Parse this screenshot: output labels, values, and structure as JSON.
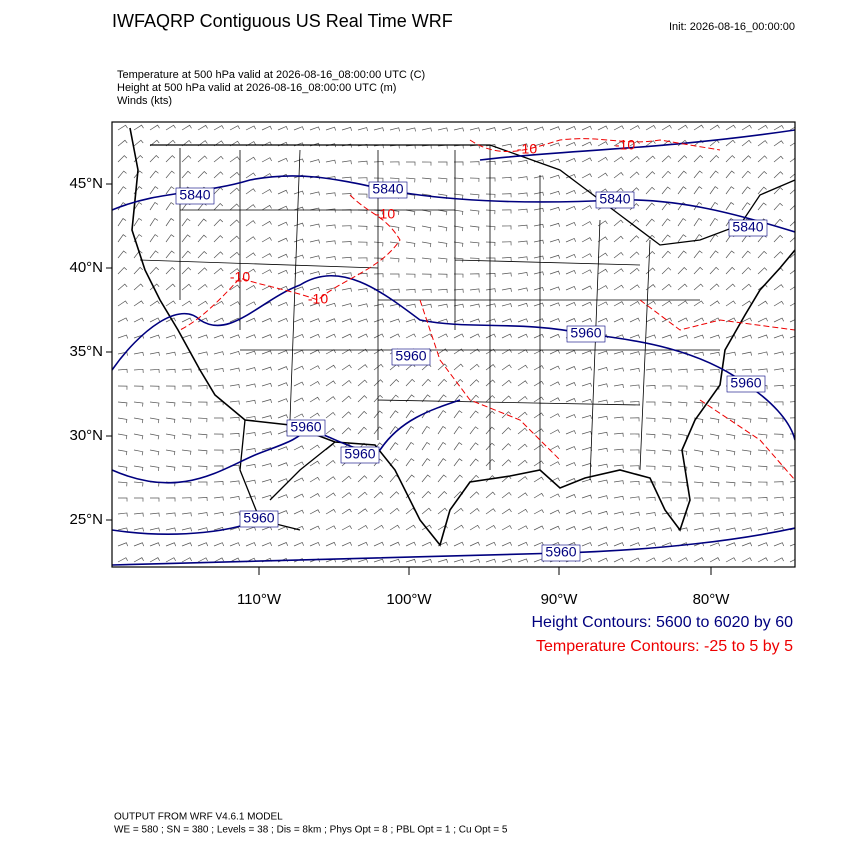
{
  "header": {
    "title": "IWFAQRP Contiguous US Real Time WRF",
    "init": "Init: 2026-08-16_00:00:00",
    "fields": [
      "Temperature at 500 hPa valid at 2026-08-16_08:00:00 UTC   (C)",
      "Height at 500 hPa valid at 2026-08-16_08:00:00 UTC   (m)",
      "Winds   (kts)"
    ]
  },
  "map": {
    "lat_labels": [
      "45°N",
      "40°N",
      "35°N",
      "30°N",
      "25°N"
    ],
    "lon_labels": [
      "110°W",
      "100°W",
      "90°W",
      "80°W"
    ],
    "height_labels": [
      "5840",
      "5840",
      "5840",
      "5840",
      "5960",
      "5960",
      "5960",
      "5960",
      "5960",
      "5960",
      "5960"
    ],
    "temperature_labels": [
      "-10",
      "-10",
      "-10",
      "-10",
      "-10"
    ]
  },
  "legend": {
    "height": "Height Contours: 5600 to 6020 by 60",
    "temperature": "Temperature Contours: -25 to 5 by 5"
  },
  "footer": [
    "OUTPUT FROM WRF V4.6.1 MODEL",
    "WE = 580 ; SN = 380 ; Levels = 38 ; Dis = 8km ; Phys Opt = 8 ; PBL Opt = 1 ; Cu Opt = 5"
  ]
}
